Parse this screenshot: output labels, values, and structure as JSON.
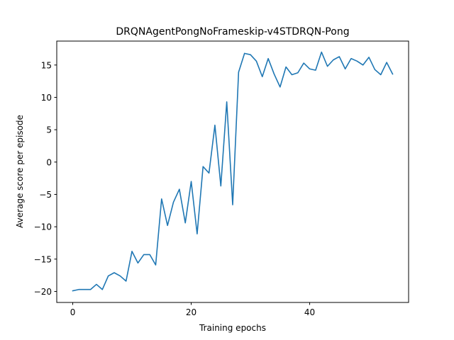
{
  "chart_data": {
    "type": "line",
    "title": "DRQNAgentPongNoFrameskip-v4STDRQN-Pong",
    "xlabel": "Training epochs",
    "ylabel": "Average score per episode",
    "xlim": [
      -2.7,
      56.7
    ],
    "ylim": [
      -21.7,
      18.7
    ],
    "xticks": [
      0,
      20,
      40
    ],
    "xtick_labels": [
      "0",
      "20",
      "40"
    ],
    "yticks": [
      -20,
      -15,
      -10,
      -5,
      0,
      5,
      10,
      15
    ],
    "ytick_labels": [
      "−20",
      "−15",
      "−10",
      "−5",
      "0",
      "5",
      "10",
      "15"
    ],
    "grid": false,
    "series": [
      {
        "color": "#1f77b4",
        "x": [
          0,
          1,
          2,
          3,
          4,
          5,
          6,
          7,
          8,
          9,
          10,
          11,
          12,
          13,
          14,
          15,
          16,
          17,
          18,
          19,
          20,
          21,
          22,
          23,
          24,
          25,
          26,
          27,
          28,
          29,
          30,
          31,
          32,
          33,
          34,
          35,
          36,
          37,
          38,
          39,
          40,
          41,
          42,
          43,
          44,
          45,
          46,
          47,
          48,
          49,
          50,
          51,
          52,
          53,
          54
        ],
        "values": [
          -19.9,
          -19.7,
          -19.7,
          -19.7,
          -18.9,
          -19.7,
          -17.6,
          -17.1,
          -17.6,
          -18.4,
          -13.8,
          -15.6,
          -14.3,
          -14.3,
          -15.9,
          -5.7,
          -9.8,
          -6.2,
          -4.2,
          -9.4,
          -3.0,
          -11.1,
          -0.7,
          -1.7,
          5.7,
          -3.7,
          9.3,
          -6.6,
          13.9,
          16.8,
          16.6,
          15.6,
          13.2,
          16.0,
          13.6,
          11.6,
          14.7,
          13.5,
          13.8,
          15.3,
          14.4,
          14.2,
          17.0,
          14.8,
          15.8,
          16.3,
          14.4,
          16.0,
          15.6,
          15.0,
          16.2,
          14.3,
          13.5,
          15.4,
          13.6
        ]
      }
    ]
  }
}
